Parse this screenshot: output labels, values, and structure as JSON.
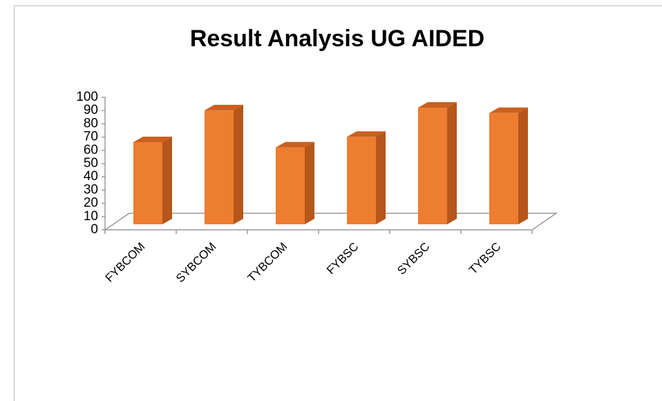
{
  "chart_data": {
    "type": "bar3d",
    "title": "Result Analysis UG AIDED",
    "categories": [
      "FYBCOM",
      "SYBCOM",
      "TYBCOM",
      "FYBSC",
      "SYBSC",
      "TYBSC"
    ],
    "values": [
      62,
      86,
      58,
      66,
      88,
      84
    ],
    "color": "#ed7d31",
    "ylim": [
      0,
      100
    ],
    "yticks": [
      0,
      10,
      20,
      30,
      40,
      50,
      60,
      70,
      80,
      90,
      100
    ]
  }
}
